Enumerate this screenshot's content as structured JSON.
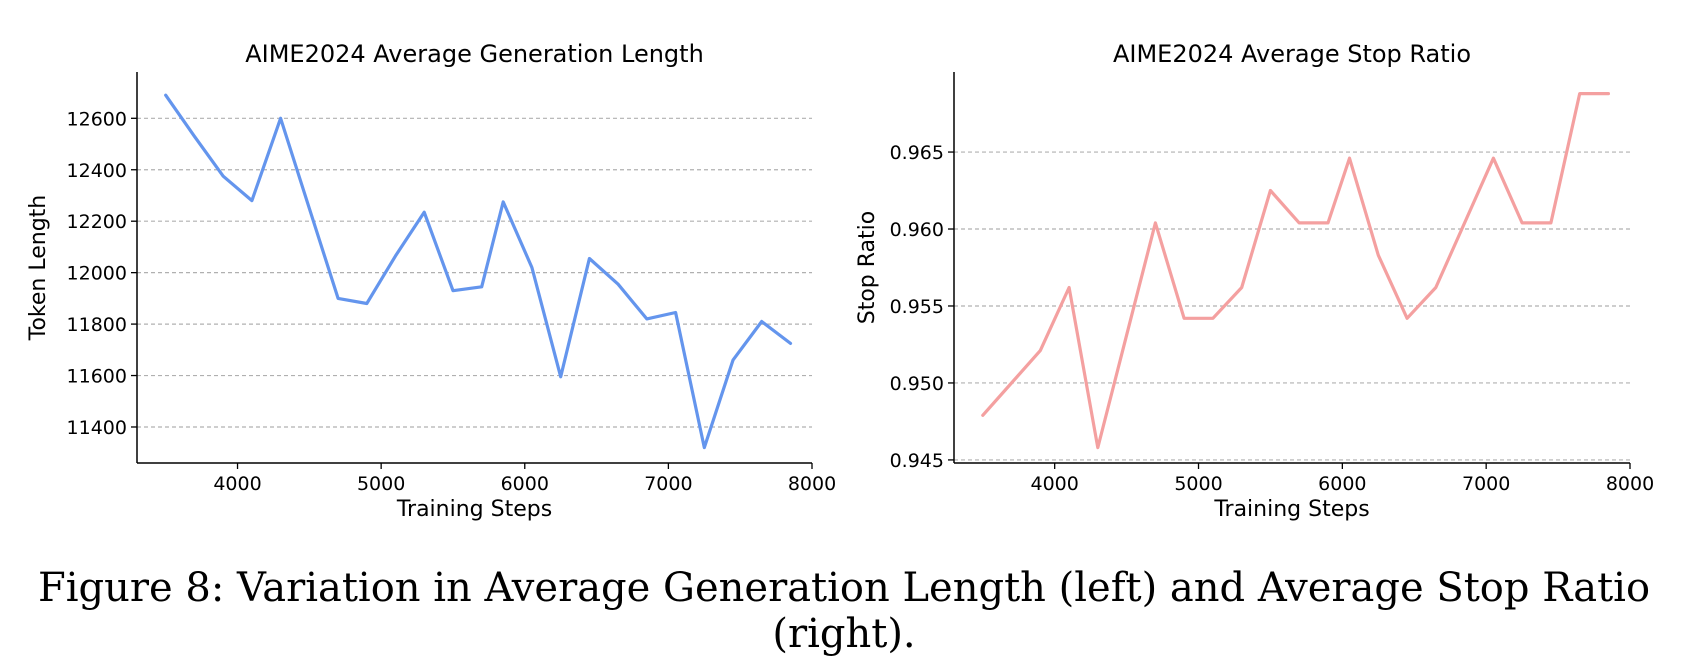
{
  "figure_caption": "Figure 8: Variation in Average Generation Length (left) and Average Stop Ratio (right).",
  "chart_data": [
    {
      "type": "line",
      "title": "AIME2024 Average Generation Length",
      "xlabel": "Training Steps",
      "ylabel": "Token Length",
      "xlim": [
        3300,
        8000
      ],
      "ylim": [
        11260,
        12780
      ],
      "xticks": [
        4000,
        5000,
        6000,
        7000,
        8000
      ],
      "yticks": [
        11400,
        11600,
        11800,
        12000,
        12200,
        12400,
        12600
      ],
      "grid": "horizontal-dashed",
      "color": "#6495ed",
      "x": [
        3500,
        3700,
        3900,
        4100,
        4300,
        4500,
        4700,
        4900,
        5100,
        5300,
        5500,
        5700,
        5850,
        6050,
        6250,
        6450,
        6650,
        6850,
        7050,
        7250,
        7450,
        7650,
        7850
      ],
      "y": [
        12690,
        12530,
        12375,
        12280,
        12600,
        12250,
        11900,
        11880,
        12065,
        12235,
        11930,
        11945,
        12275,
        12020,
        11595,
        12055,
        11955,
        11820,
        11845,
        11320,
        11660,
        11810,
        11725
      ]
    },
    {
      "type": "line",
      "title": "AIME2024 Average Stop Ratio",
      "xlabel": "Training Steps",
      "ylabel": "Stop Ratio",
      "xlim": [
        3300,
        8000
      ],
      "ylim": [
        0.9448,
        0.9702
      ],
      "xticks": [
        4000,
        5000,
        6000,
        7000,
        8000
      ],
      "yticks": [
        0.945,
        0.95,
        0.955,
        0.96,
        0.965
      ],
      "ytick_labels": [
        "0.945",
        "0.950",
        "0.955",
        "0.960",
        "0.965"
      ],
      "grid": "horizontal-dashed",
      "color": "#f4a0a0",
      "x": [
        3500,
        3700,
        3900,
        4100,
        4300,
        4500,
        4700,
        4900,
        5100,
        5300,
        5500,
        5700,
        5900,
        6050,
        6250,
        6450,
        6650,
        6850,
        7050,
        7250,
        7450,
        7650,
        7850
      ],
      "y": [
        0.9479,
        0.95,
        0.9521,
        0.9562,
        0.9458,
        0.9531,
        0.9604,
        0.9542,
        0.9542,
        0.9562,
        0.9625,
        0.9604,
        0.9604,
        0.9646,
        0.9583,
        0.9542,
        0.9562,
        0.9604,
        0.9646,
        0.9604,
        0.9604,
        0.9688,
        0.9688
      ]
    }
  ]
}
